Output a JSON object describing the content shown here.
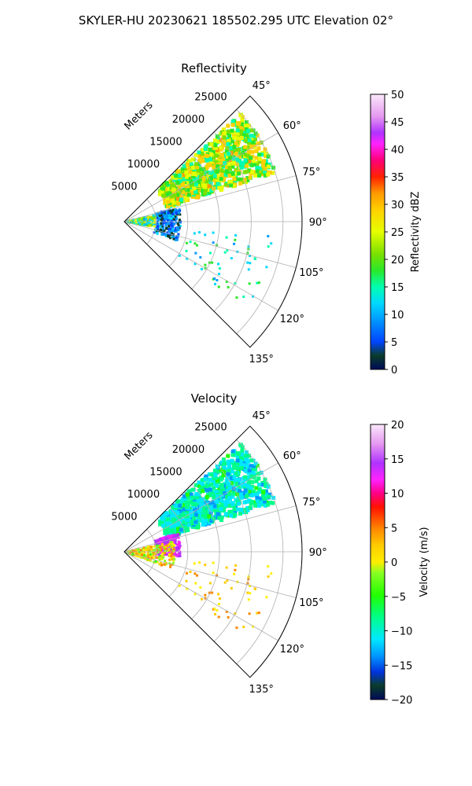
{
  "figure": {
    "title": "SKYLER-HU  20230621  185502.295 UTC Elevation 02°"
  },
  "chart_data": [
    {
      "type": "heatmap",
      "title": "Reflectivity",
      "radial_axis_label": "Meters",
      "radial_ticks": [
        5000,
        10000,
        15000,
        20000,
        25000
      ],
      "range_limit_m": 28000,
      "azimuth_range_deg": [
        45,
        135
      ],
      "azimuth_tick_labels": [
        "45°",
        "60°",
        "75°",
        "90°",
        "105°",
        "120°",
        "135°"
      ],
      "colorbar": {
        "label": "Reflectivity dBZ",
        "range": [
          0,
          50
        ],
        "ticks": [
          "0",
          "5",
          "10",
          "15",
          "20",
          "25",
          "30",
          "35",
          "40",
          "45",
          "50"
        ]
      },
      "grid": true,
      "echo_regions": [
        {
          "feature": "main band",
          "azimuth_deg": [
            47,
            72
          ],
          "range_m": [
            7000,
            25000
          ],
          "value_range": [
            15,
            30
          ]
        },
        {
          "feature": "near-radar low returns",
          "azimuth_deg": [
            75,
            110
          ],
          "range_m": [
            5000,
            9000
          ],
          "value_range": [
            2,
            12
          ]
        },
        {
          "feature": "clutter near radar",
          "azimuth_deg": [
            78,
            100
          ],
          "range_m": [
            500,
            5000
          ],
          "value_range": [
            10,
            28
          ]
        },
        {
          "feature": "scattered cells",
          "azimuth_deg": [
            95,
            125
          ],
          "range_m": [
            10000,
            24000
          ],
          "value_range": [
            10,
            20
          ]
        }
      ]
    },
    {
      "type": "heatmap",
      "title": "Velocity",
      "radial_axis_label": "Meters",
      "radial_ticks": [
        5000,
        10000,
        15000,
        20000,
        25000
      ],
      "range_limit_m": 28000,
      "azimuth_range_deg": [
        45,
        135
      ],
      "azimuth_tick_labels": [
        "45°",
        "60°",
        "75°",
        "90°",
        "105°",
        "120°",
        "135°"
      ],
      "colorbar": {
        "label": "Velocity (m/s)",
        "range": [
          -20,
          20
        ],
        "ticks": [
          "−20",
          "−15",
          "−10",
          "−5",
          "0",
          "5",
          "10",
          "15",
          "20"
        ]
      },
      "grid": true,
      "echo_regions": [
        {
          "feature": "main band",
          "azimuth_deg": [
            47,
            72
          ],
          "range_m": [
            7000,
            25000
          ],
          "value_range": [
            -12,
            -6
          ]
        },
        {
          "feature": "near-radar returns",
          "azimuth_deg": [
            70,
            95
          ],
          "range_m": [
            5000,
            9000
          ],
          "value_range": [
            12,
            16
          ]
        },
        {
          "feature": "clutter near radar",
          "azimuth_deg": [
            78,
            110
          ],
          "range_m": [
            500,
            8000
          ],
          "value_range": [
            -4,
            6
          ]
        },
        {
          "feature": "scattered cells",
          "azimuth_deg": [
            95,
            125
          ],
          "range_m": [
            10000,
            24000
          ],
          "value_range": [
            0,
            5
          ]
        }
      ]
    }
  ]
}
